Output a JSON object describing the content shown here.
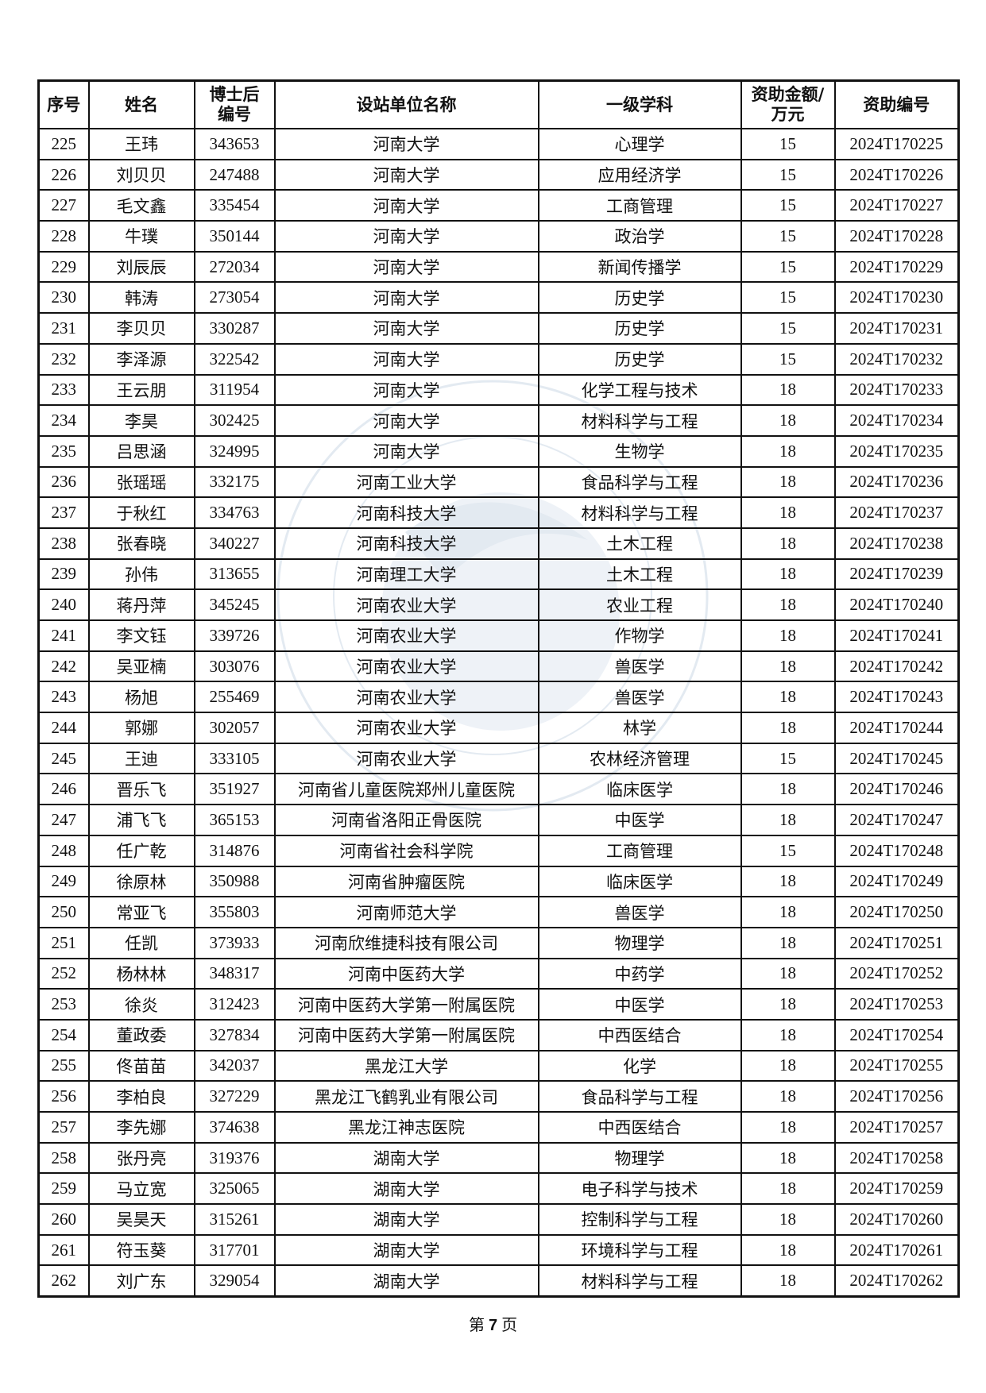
{
  "headers": [
    "序号",
    "姓名",
    "博士后编号",
    "设站单位名称",
    "一级学科",
    "资助金额/万元",
    "资助编号"
  ],
  "header_lines": {
    "postdoc_id": [
      "博士后",
      "编号"
    ],
    "amount": [
      "资助金额/",
      "万元"
    ]
  },
  "rows": [
    [
      "225",
      "王玮",
      "343653",
      "河南大学",
      "心理学",
      "15",
      "2024T170225"
    ],
    [
      "226",
      "刘贝贝",
      "247488",
      "河南大学",
      "应用经济学",
      "15",
      "2024T170226"
    ],
    [
      "227",
      "毛文鑫",
      "335454",
      "河南大学",
      "工商管理",
      "15",
      "2024T170227"
    ],
    [
      "228",
      "牛璞",
      "350144",
      "河南大学",
      "政治学",
      "15",
      "2024T170228"
    ],
    [
      "229",
      "刘辰辰",
      "272034",
      "河南大学",
      "新闻传播学",
      "15",
      "2024T170229"
    ],
    [
      "230",
      "韩涛",
      "273054",
      "河南大学",
      "历史学",
      "15",
      "2024T170230"
    ],
    [
      "231",
      "李贝贝",
      "330287",
      "河南大学",
      "历史学",
      "15",
      "2024T170231"
    ],
    [
      "232",
      "李泽源",
      "322542",
      "河南大学",
      "历史学",
      "15",
      "2024T170232"
    ],
    [
      "233",
      "王云朋",
      "311954",
      "河南大学",
      "化学工程与技术",
      "18",
      "2024T170233"
    ],
    [
      "234",
      "李昊",
      "302425",
      "河南大学",
      "材料科学与工程",
      "18",
      "2024T170234"
    ],
    [
      "235",
      "吕思涵",
      "324995",
      "河南大学",
      "生物学",
      "18",
      "2024T170235"
    ],
    [
      "236",
      "张瑶瑶",
      "332175",
      "河南工业大学",
      "食品科学与工程",
      "18",
      "2024T170236"
    ],
    [
      "237",
      "于秋红",
      "334763",
      "河南科技大学",
      "材料科学与工程",
      "18",
      "2024T170237"
    ],
    [
      "238",
      "张春晓",
      "340227",
      "河南科技大学",
      "土木工程",
      "18",
      "2024T170238"
    ],
    [
      "239",
      "孙伟",
      "313655",
      "河南理工大学",
      "土木工程",
      "18",
      "2024T170239"
    ],
    [
      "240",
      "蒋丹萍",
      "345245",
      "河南农业大学",
      "农业工程",
      "18",
      "2024T170240"
    ],
    [
      "241",
      "李文钰",
      "339726",
      "河南农业大学",
      "作物学",
      "18",
      "2024T170241"
    ],
    [
      "242",
      "吴亚楠",
      "303076",
      "河南农业大学",
      "兽医学",
      "18",
      "2024T170242"
    ],
    [
      "243",
      "杨旭",
      "255469",
      "河南农业大学",
      "兽医学",
      "18",
      "2024T170243"
    ],
    [
      "244",
      "郭娜",
      "302057",
      "河南农业大学",
      "林学",
      "18",
      "2024T170244"
    ],
    [
      "245",
      "王迪",
      "333105",
      "河南农业大学",
      "农林经济管理",
      "15",
      "2024T170245"
    ],
    [
      "246",
      "晋乐飞",
      "351927",
      "河南省儿童医院郑州儿童医院",
      "临床医学",
      "18",
      "2024T170246"
    ],
    [
      "247",
      "浦飞飞",
      "365153",
      "河南省洛阳正骨医院",
      "中医学",
      "18",
      "2024T170247"
    ],
    [
      "248",
      "任广乾",
      "314876",
      "河南省社会科学院",
      "工商管理",
      "15",
      "2024T170248"
    ],
    [
      "249",
      "徐原林",
      "350988",
      "河南省肿瘤医院",
      "临床医学",
      "18",
      "2024T170249"
    ],
    [
      "250",
      "常亚飞",
      "355803",
      "河南师范大学",
      "兽医学",
      "18",
      "2024T170250"
    ],
    [
      "251",
      "任凯",
      "373933",
      "河南欣维捷科技有限公司",
      "物理学",
      "18",
      "2024T170251"
    ],
    [
      "252",
      "杨林林",
      "348317",
      "河南中医药大学",
      "中药学",
      "18",
      "2024T170252"
    ],
    [
      "253",
      "徐炎",
      "312423",
      "河南中医药大学第一附属医院",
      "中医学",
      "18",
      "2024T170253"
    ],
    [
      "254",
      "董政委",
      "327834",
      "河南中医药大学第一附属医院",
      "中西医结合",
      "18",
      "2024T170254"
    ],
    [
      "255",
      "佟苗苗",
      "342037",
      "黑龙江大学",
      "化学",
      "18",
      "2024T170255"
    ],
    [
      "256",
      "李柏良",
      "327229",
      "黑龙江飞鹤乳业有限公司",
      "食品科学与工程",
      "18",
      "2024T170256"
    ],
    [
      "257",
      "李先娜",
      "374638",
      "黑龙江神志医院",
      "中西医结合",
      "18",
      "2024T170257"
    ],
    [
      "258",
      "张丹亮",
      "319376",
      "湖南大学",
      "物理学",
      "18",
      "2024T170258"
    ],
    [
      "259",
      "马立宽",
      "325065",
      "湖南大学",
      "电子科学与技术",
      "18",
      "2024T170259"
    ],
    [
      "260",
      "吴昊天",
      "315261",
      "湖南大学",
      "控制科学与工程",
      "18",
      "2024T170260"
    ],
    [
      "261",
      "符玉葵",
      "317701",
      "湖南大学",
      "环境科学与工程",
      "18",
      "2024T170261"
    ],
    [
      "262",
      "刘广东",
      "329054",
      "湖南大学",
      "材料科学与工程",
      "18",
      "2024T170262"
    ]
  ],
  "footer": {
    "prefix": "第",
    "page": "7",
    "suffix": "页"
  },
  "watermark": {
    "text": "CHINA POSTDOCTORAL SCIENCE FOUNDATION",
    "color": "#5a7fae"
  }
}
